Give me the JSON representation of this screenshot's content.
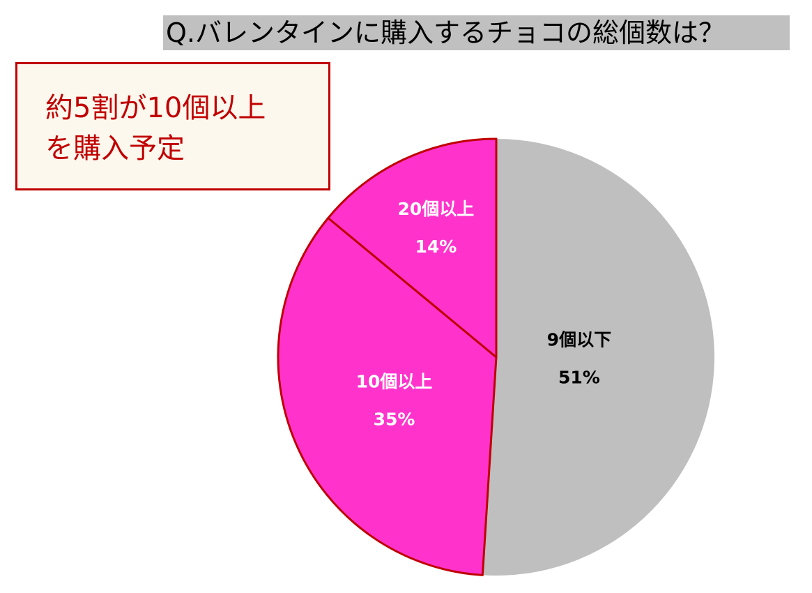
{
  "chart_data": {
    "type": "pie",
    "title": "Q.バレンタインに購入するチョコの総個数は？",
    "annotation": "約5割が10個以上\nを購入予定",
    "categories": [
      "9個以下",
      "10個以上",
      "20個以上"
    ],
    "values": [
      51,
      35,
      14
    ],
    "value_labels": [
      "51%",
      "35%",
      "14%"
    ],
    "colors": [
      "#bfbfbf",
      "#ff33cc",
      "#ff33cc"
    ]
  }
}
